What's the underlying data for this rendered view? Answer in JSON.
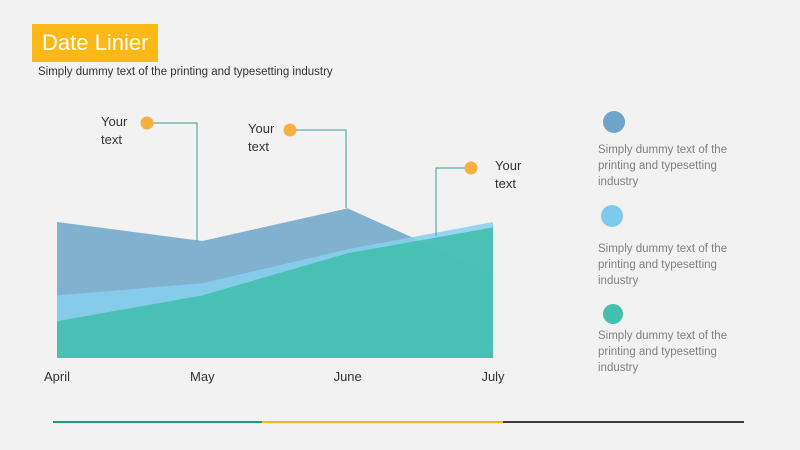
{
  "header": {
    "title": "Date Linier",
    "subtitle": "Simply dummy text of the printing and typesetting industry"
  },
  "callouts": [
    {
      "text": "Your text"
    },
    {
      "text": "Your text"
    },
    {
      "text": "Your text"
    }
  ],
  "legend": [
    {
      "text": "Simply dummy text of the printing and typesetting industry",
      "color": "#6fa4c9"
    },
    {
      "text": "Simply dummy text of the printing and typesetting industry",
      "color": "#7fcbeb"
    },
    {
      "text": "Simply dummy text of the printing and typesetting industry",
      "color": "#43bfae"
    }
  ],
  "colors": {
    "accent": "#fbb816",
    "callout_dot": "#f5b041",
    "footer": [
      "#1e9a7f",
      "#f2b61c",
      "#3f3f3f"
    ]
  },
  "chart_data": {
    "type": "area",
    "categories": [
      "April",
      "May",
      "June",
      "July"
    ],
    "ylim": [
      0,
      100
    ],
    "series": [
      {
        "values": [
          100,
          86,
          110,
          62
        ],
        "color": "#6fa4c9",
        "opacity": 0.85
      },
      {
        "values": [
          46,
          55,
          80,
          100
        ],
        "color": "#86d0ee",
        "opacity": 0.85
      },
      {
        "values": [
          27,
          46,
          77,
          96
        ],
        "color": "#43bfae",
        "opacity": 0.9
      }
    ],
    "xlabel": "",
    "ylabel": "",
    "grid": false
  }
}
